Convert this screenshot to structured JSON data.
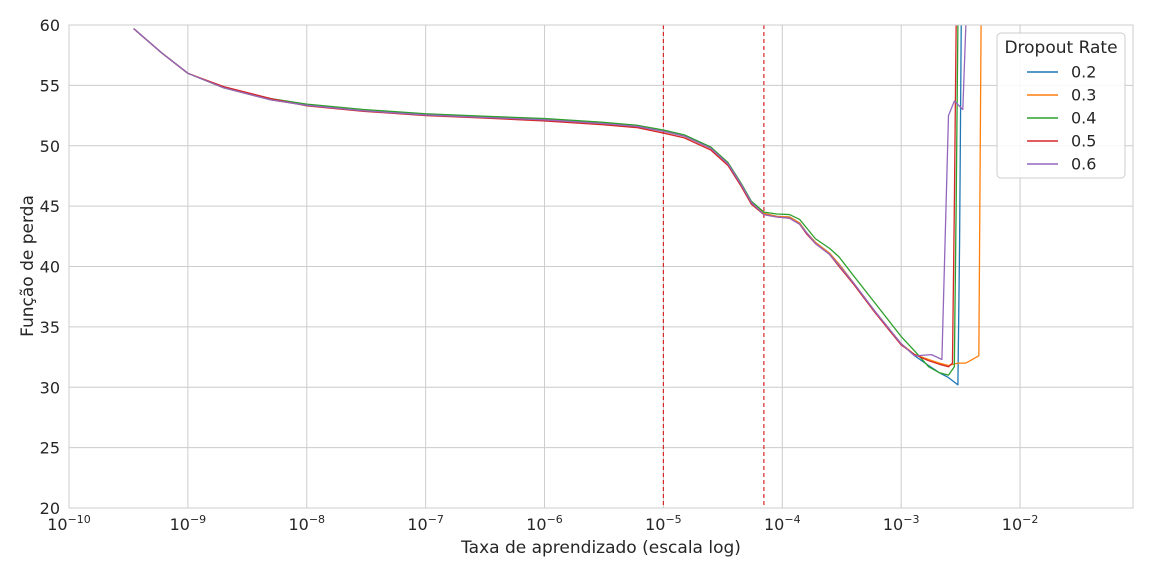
{
  "chart_data": {
    "type": "line",
    "xlabel": "Taxa de aprendizado (escala log)",
    "ylabel": "Função de perda",
    "xscale": "log",
    "xlim_exp": [
      -10,
      -1.05
    ],
    "ylim": [
      20,
      60
    ],
    "x_tick_exponents": [
      -10,
      -9,
      -8,
      -7,
      -6,
      -5,
      -4,
      -3,
      -2
    ],
    "x_tick_labels": [
      "10−10",
      "10−9",
      "10−8",
      "10−7",
      "10−6",
      "10−5",
      "10−4",
      "10−3",
      "10−2"
    ],
    "y_ticks": [
      20,
      25,
      30,
      35,
      40,
      45,
      50,
      55,
      60
    ],
    "y_tick_labels": [
      "20",
      "25",
      "30",
      "35",
      "40",
      "45",
      "50",
      "55",
      "60"
    ],
    "grid": true,
    "legend": {
      "title": "Dropout Rate",
      "placement": "top-right"
    },
    "vlines": [
      {
        "x": 1e-05,
        "color": "#d62728",
        "style": "dashed"
      },
      {
        "x": 7e-05,
        "color": "#d62728",
        "style": "dashed"
      }
    ],
    "series": [
      {
        "name": "0.2",
        "color": "#1f77b4",
        "points": [
          [
            3.5e-10,
            59.7
          ],
          [
            6e-10,
            57.7
          ],
          [
            1e-09,
            56.0
          ],
          [
            2e-09,
            54.8
          ],
          [
            5e-09,
            53.8
          ],
          [
            1e-08,
            53.35
          ],
          [
            3e-08,
            52.9
          ],
          [
            1e-07,
            52.55
          ],
          [
            3e-07,
            52.35
          ],
          [
            1e-06,
            52.15
          ],
          [
            3e-06,
            51.85
          ],
          [
            6e-06,
            51.6
          ],
          [
            1e-05,
            51.2
          ],
          [
            1.5e-05,
            50.8
          ],
          [
            2.5e-05,
            49.8
          ],
          [
            3.5e-05,
            48.5
          ],
          [
            4.5e-05,
            46.8
          ],
          [
            5.5e-05,
            45.3
          ],
          [
            7e-05,
            44.4
          ],
          [
            9e-05,
            44.15
          ],
          [
            0.000115,
            44.1
          ],
          [
            0.00014,
            43.6
          ],
          [
            0.00016,
            42.8
          ],
          [
            0.00019,
            42.0
          ],
          [
            0.00025,
            41.1
          ],
          [
            0.0003,
            40.2
          ],
          [
            0.0004,
            38.6
          ],
          [
            0.0006,
            36.3
          ],
          [
            0.001,
            33.6
          ],
          [
            0.0013,
            32.6
          ],
          [
            0.0017,
            31.8
          ],
          [
            0.0021,
            31.2
          ],
          [
            0.0025,
            30.8
          ],
          [
            0.003,
            30.2
          ],
          [
            0.0031,
            42.0
          ],
          [
            0.0032,
            60.0
          ],
          [
            0.0034,
            62.0
          ]
        ]
      },
      {
        "name": "0.3",
        "color": "#ff7f0e",
        "points": [
          [
            3.5e-10,
            59.7
          ],
          [
            6e-10,
            57.7
          ],
          [
            1e-09,
            56.0
          ],
          [
            2e-09,
            54.8
          ],
          [
            5e-09,
            53.8
          ],
          [
            1e-08,
            53.35
          ],
          [
            3e-08,
            52.9
          ],
          [
            1e-07,
            52.55
          ],
          [
            3e-07,
            52.35
          ],
          [
            1e-06,
            52.15
          ],
          [
            3e-06,
            51.85
          ],
          [
            6e-06,
            51.6
          ],
          [
            1e-05,
            51.2
          ],
          [
            1.5e-05,
            50.8
          ],
          [
            2.5e-05,
            49.8
          ],
          [
            3.5e-05,
            48.5
          ],
          [
            4.5e-05,
            46.8
          ],
          [
            5.5e-05,
            45.3
          ],
          [
            7e-05,
            44.4
          ],
          [
            9e-05,
            44.15
          ],
          [
            0.000115,
            44.1
          ],
          [
            0.00014,
            43.6
          ],
          [
            0.00016,
            42.8
          ],
          [
            0.00019,
            42.0
          ],
          [
            0.00025,
            41.1
          ],
          [
            0.0003,
            40.2
          ],
          [
            0.0004,
            38.6
          ],
          [
            0.0006,
            36.3
          ],
          [
            0.001,
            33.6
          ],
          [
            0.0013,
            32.7
          ],
          [
            0.0017,
            32.3
          ],
          [
            0.0021,
            32.0
          ],
          [
            0.0025,
            31.8
          ],
          [
            0.003,
            32.0
          ],
          [
            0.0035,
            32.0
          ],
          [
            0.0045,
            32.6
          ],
          [
            0.0047,
            60.0
          ],
          [
            0.0049,
            62.0
          ]
        ]
      },
      {
        "name": "0.4",
        "color": "#2ca02c",
        "points": [
          [
            3.5e-10,
            59.7
          ],
          [
            6e-10,
            57.7
          ],
          [
            1e-09,
            56.0
          ],
          [
            2e-09,
            54.8
          ],
          [
            5e-09,
            53.9
          ],
          [
            1e-08,
            53.45
          ],
          [
            3e-08,
            53.0
          ],
          [
            1e-07,
            52.65
          ],
          [
            3e-07,
            52.45
          ],
          [
            1e-06,
            52.25
          ],
          [
            3e-06,
            51.95
          ],
          [
            6e-06,
            51.7
          ],
          [
            1e-05,
            51.3
          ],
          [
            1.5e-05,
            50.9
          ],
          [
            2.5e-05,
            49.9
          ],
          [
            3.5e-05,
            48.6
          ],
          [
            4.5e-05,
            46.9
          ],
          [
            5.5e-05,
            45.4
          ],
          [
            7e-05,
            44.5
          ],
          [
            9e-05,
            44.35
          ],
          [
            0.000115,
            44.3
          ],
          [
            0.00014,
            43.9
          ],
          [
            0.00016,
            43.2
          ],
          [
            0.00019,
            42.3
          ],
          [
            0.00025,
            41.5
          ],
          [
            0.0003,
            40.8
          ],
          [
            0.0004,
            39.2
          ],
          [
            0.0006,
            37.0
          ],
          [
            0.001,
            34.2
          ],
          [
            0.0013,
            33.0
          ],
          [
            0.0017,
            31.7
          ],
          [
            0.0021,
            31.2
          ],
          [
            0.0025,
            31.0
          ],
          [
            0.0028,
            31.7
          ],
          [
            0.0029,
            45.0
          ],
          [
            0.003,
            60.0
          ],
          [
            0.0031,
            62.0
          ]
        ]
      },
      {
        "name": "0.5",
        "color": "#d62728",
        "points": [
          [
            3.5e-10,
            59.7
          ],
          [
            6e-10,
            57.7
          ],
          [
            1e-09,
            56.0
          ],
          [
            2e-09,
            54.9
          ],
          [
            5e-09,
            53.9
          ],
          [
            1e-08,
            53.3
          ],
          [
            3e-08,
            52.85
          ],
          [
            1e-07,
            52.5
          ],
          [
            3e-07,
            52.3
          ],
          [
            1e-06,
            52.05
          ],
          [
            3e-06,
            51.75
          ],
          [
            6e-06,
            51.5
          ],
          [
            1e-05,
            51.05
          ],
          [
            1.5e-05,
            50.65
          ],
          [
            2.5e-05,
            49.65
          ],
          [
            3.5e-05,
            48.35
          ],
          [
            4.5e-05,
            46.65
          ],
          [
            5.5e-05,
            45.15
          ],
          [
            7e-05,
            44.3
          ],
          [
            9e-05,
            44.1
          ],
          [
            0.000115,
            44.0
          ],
          [
            0.00014,
            43.5
          ],
          [
            0.00016,
            42.7
          ],
          [
            0.00019,
            41.9
          ],
          [
            0.00025,
            41.0
          ],
          [
            0.0003,
            40.0
          ],
          [
            0.0004,
            38.5
          ],
          [
            0.0006,
            36.2
          ],
          [
            0.001,
            33.5
          ],
          [
            0.0013,
            32.7
          ],
          [
            0.0017,
            32.2
          ],
          [
            0.0021,
            31.9
          ],
          [
            0.0025,
            31.7
          ],
          [
            0.0027,
            32.0
          ],
          [
            0.0028,
            45.0
          ],
          [
            0.0029,
            60.0
          ],
          [
            0.003,
            62.0
          ]
        ]
      },
      {
        "name": "0.6",
        "color": "#9467bd",
        "points": [
          [
            3.5e-10,
            59.7
          ],
          [
            6e-10,
            57.7
          ],
          [
            1e-09,
            56.0
          ],
          [
            2e-09,
            54.8
          ],
          [
            5e-09,
            53.8
          ],
          [
            1e-08,
            53.35
          ],
          [
            3e-08,
            52.9
          ],
          [
            1e-07,
            52.55
          ],
          [
            3e-07,
            52.35
          ],
          [
            1e-06,
            52.15
          ],
          [
            3e-06,
            51.85
          ],
          [
            6e-06,
            51.6
          ],
          [
            1e-05,
            51.2
          ],
          [
            1.5e-05,
            50.8
          ],
          [
            2.5e-05,
            49.8
          ],
          [
            3.5e-05,
            48.5
          ],
          [
            4.5e-05,
            46.8
          ],
          [
            5.5e-05,
            45.3
          ],
          [
            7e-05,
            44.3
          ],
          [
            9e-05,
            44.1
          ],
          [
            0.000115,
            44.0
          ],
          [
            0.00014,
            43.5
          ],
          [
            0.00016,
            42.8
          ],
          [
            0.00019,
            41.9
          ],
          [
            0.00025,
            41.0
          ],
          [
            0.0003,
            40.1
          ],
          [
            0.0004,
            38.6
          ],
          [
            0.0006,
            36.3
          ],
          [
            0.001,
            33.6
          ],
          [
            0.0013,
            32.6
          ],
          [
            0.0018,
            32.7
          ],
          [
            0.0022,
            32.3
          ],
          [
            0.0025,
            52.5
          ],
          [
            0.0028,
            53.7
          ],
          [
            0.0033,
            53.0
          ],
          [
            0.0035,
            60.0
          ],
          [
            0.0036,
            62.0
          ]
        ]
      }
    ]
  }
}
